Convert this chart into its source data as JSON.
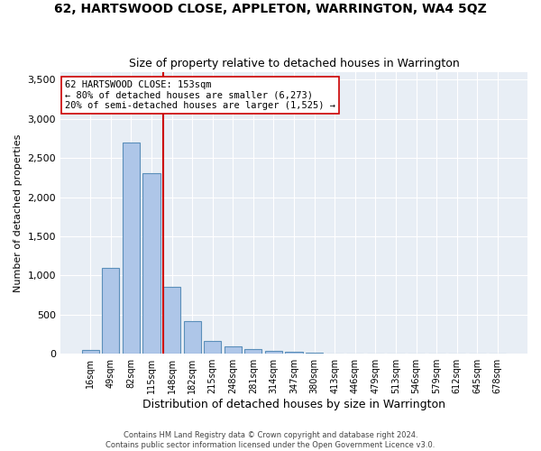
{
  "title": "62, HARTSWOOD CLOSE, APPLETON, WARRINGTON, WA4 5QZ",
  "subtitle": "Size of property relative to detached houses in Warrington",
  "xlabel": "Distribution of detached houses by size in Warrington",
  "ylabel": "Number of detached properties",
  "bin_labels": [
    "16sqm",
    "49sqm",
    "82sqm",
    "115sqm",
    "148sqm",
    "182sqm",
    "215sqm",
    "248sqm",
    "281sqm",
    "314sqm",
    "347sqm",
    "380sqm",
    "413sqm",
    "446sqm",
    "479sqm",
    "513sqm",
    "546sqm",
    "579sqm",
    "612sqm",
    "645sqm",
    "678sqm"
  ],
  "bar_heights": [
    50,
    1100,
    2700,
    2300,
    850,
    420,
    160,
    100,
    60,
    40,
    20,
    10,
    5,
    3,
    2,
    1,
    0,
    0,
    0,
    0,
    0
  ],
  "bar_color": "#aec6e8",
  "bar_edge_color": "#5b8fba",
  "property_line_bin_index": 4,
  "property_line_color": "#cc0000",
  "annotation_text": "62 HARTSWOOD CLOSE: 153sqm\n← 80% of detached houses are smaller (6,273)\n20% of semi-detached houses are larger (1,525) →",
  "annotation_box_color": "#ffffff",
  "annotation_box_edgecolor": "#cc0000",
  "ylim": [
    0,
    3600
  ],
  "yticks": [
    0,
    500,
    1000,
    1500,
    2000,
    2500,
    3000,
    3500
  ],
  "background_color": "#e8eef5",
  "footer_line1": "Contains HM Land Registry data © Crown copyright and database right 2024.",
  "footer_line2": "Contains public sector information licensed under the Open Government Licence v3.0."
}
